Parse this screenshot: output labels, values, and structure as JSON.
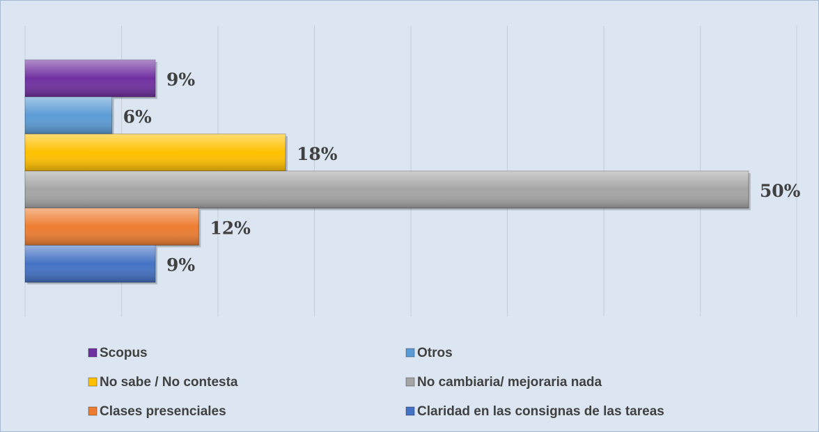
{
  "chart_data": {
    "type": "bar",
    "orientation": "horizontal",
    "series": [
      {
        "name": "Scopus",
        "color": "#7030a0",
        "values": [
          9
        ],
        "value_labels": [
          "9%"
        ]
      },
      {
        "name": "Otros",
        "color": "#5b9bd5",
        "values": [
          6
        ],
        "value_labels": [
          "6%"
        ]
      },
      {
        "name": "No sabe / No contesta",
        "color": "#ffc000",
        "values": [
          18
        ],
        "value_labels": [
          "18%"
        ]
      },
      {
        "name": "No cambiaria/ mejoraria nada",
        "color": "#a5a5a5",
        "values": [
          50
        ],
        "value_labels": [
          "50%"
        ]
      },
      {
        "name": "Clases presenciales",
        "color": "#ed7d31",
        "values": [
          12
        ],
        "value_labels": [
          "12%"
        ]
      },
      {
        "name": "Claridad en las consignas de las tareas",
        "color": "#4472c4",
        "values": [
          9
        ],
        "value_labels": [
          "9%"
        ]
      }
    ],
    "xlim": [
      0,
      53.33
    ],
    "xticks": [
      0,
      6.67,
      13.33,
      20,
      26.67,
      33.33,
      40,
      46.67,
      53.33
    ],
    "grid": true,
    "legend": "bottom"
  }
}
